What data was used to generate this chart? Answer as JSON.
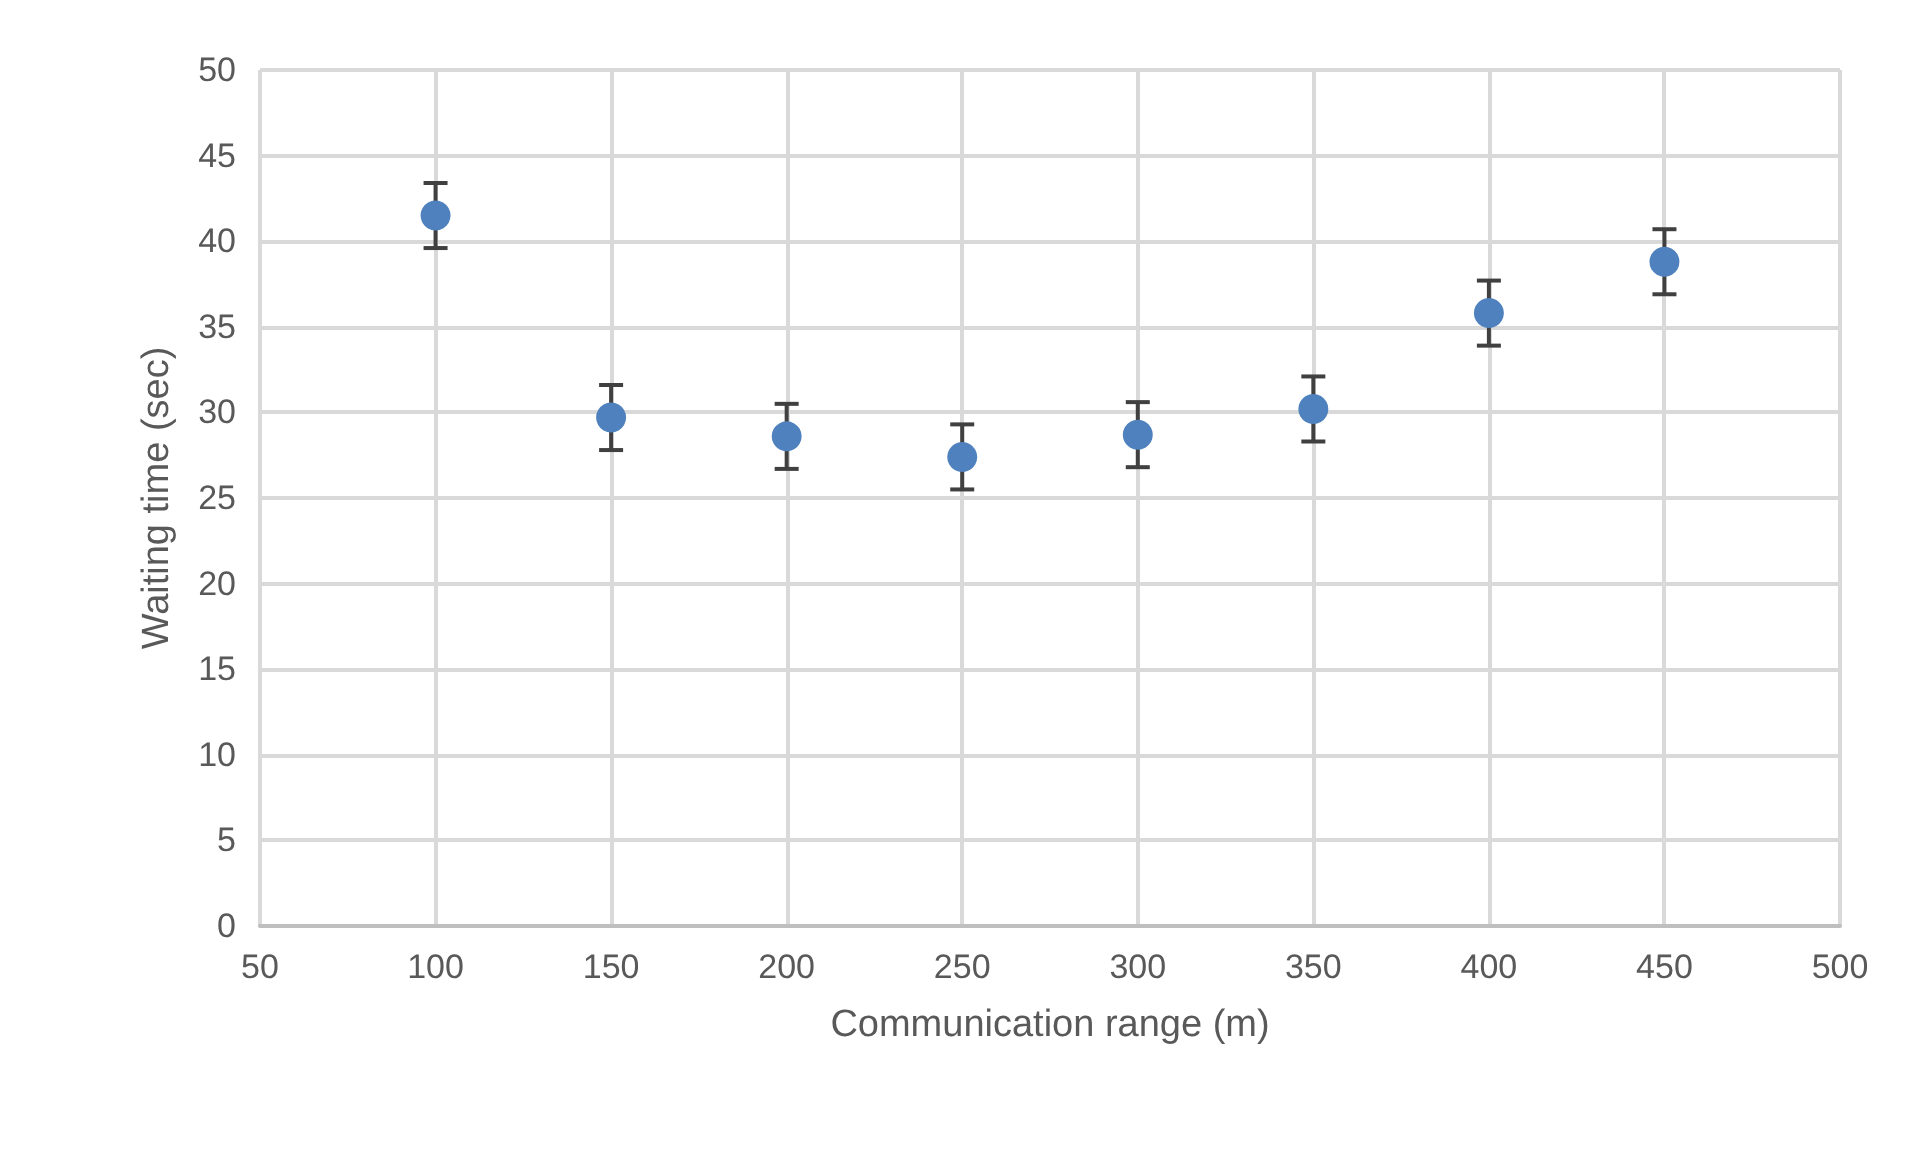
{
  "chart_data": {
    "type": "scatter",
    "xlabel": "Communication range (m)",
    "ylabel": "Waiting time (sec)",
    "x": [
      100,
      150,
      200,
      250,
      300,
      350,
      400,
      450
    ],
    "values": [
      41.5,
      29.7,
      28.6,
      27.4,
      28.7,
      30.2,
      35.8,
      38.8
    ],
    "errors": [
      1.9,
      1.9,
      1.9,
      1.9,
      1.9,
      1.9,
      1.9,
      1.9
    ],
    "color": "#4e81bd",
    "xlim": [
      50,
      500
    ],
    "xticks": [
      50,
      100,
      150,
      200,
      250,
      300,
      350,
      400,
      450,
      500
    ],
    "ylim": [
      0,
      50
    ],
    "yticks": [
      0,
      5,
      10,
      15,
      20,
      25,
      30,
      35,
      40,
      45,
      50
    ],
    "grid": true,
    "marker": "circle"
  }
}
